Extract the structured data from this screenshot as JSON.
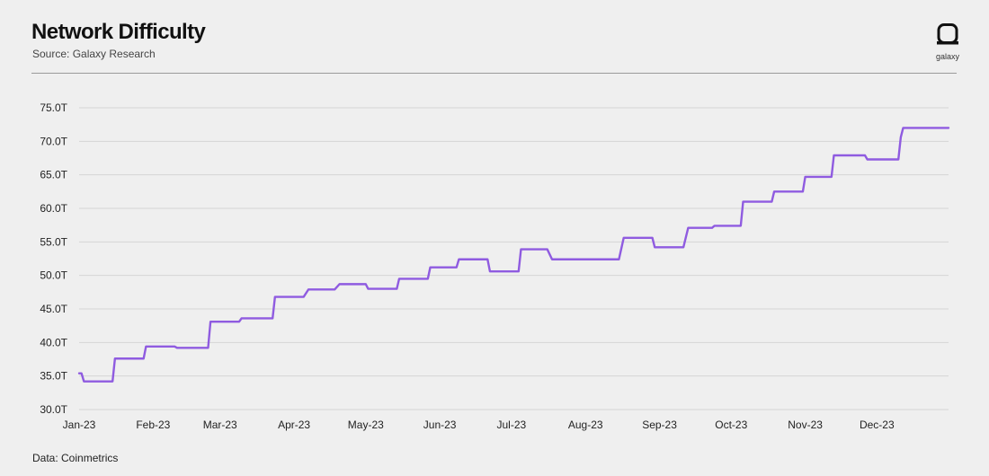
{
  "header": {
    "title": "Network Difficulty",
    "subtitle": "Source: Galaxy Research",
    "logo_text": "galaxy"
  },
  "footer": {
    "note": "Data: Coinmetrics"
  },
  "colors": {
    "line": "#8f5be0",
    "grid": "#d4d4d4",
    "background": "#efefef"
  },
  "chart_data": {
    "type": "line",
    "title": "Network Difficulty",
    "subtitle": "Source: Galaxy Research",
    "xlabel": "",
    "ylabel": "",
    "ylim": [
      30,
      75
    ],
    "y_unit": "T",
    "yticks": [
      "30.0T",
      "35.0T",
      "40.0T",
      "45.0T",
      "50.0T",
      "55.0T",
      "60.0T",
      "65.0T",
      "70.0T",
      "75.0T"
    ],
    "xlim": [
      "2023-01-01",
      "2023-12-31"
    ],
    "xticks": [
      {
        "date": "2023-01-01",
        "label": "Jan-23"
      },
      {
        "date": "2023-02-01",
        "label": "Feb-23"
      },
      {
        "date": "2023-03-01",
        "label": "Mar-23"
      },
      {
        "date": "2023-04-01",
        "label": "Apr-23"
      },
      {
        "date": "2023-05-01",
        "label": "May-23"
      },
      {
        "date": "2023-06-01",
        "label": "Jun-23"
      },
      {
        "date": "2023-07-01",
        "label": "Jul-23"
      },
      {
        "date": "2023-08-01",
        "label": "Aug-23"
      },
      {
        "date": "2023-09-01",
        "label": "Sep-23"
      },
      {
        "date": "2023-10-01",
        "label": "Oct-23"
      },
      {
        "date": "2023-11-01",
        "label": "Nov-23"
      },
      {
        "date": "2023-12-01",
        "label": "Dec-23"
      }
    ],
    "grid": "horizontal",
    "legend": "none",
    "series": [
      {
        "name": "",
        "points": [
          [
            "2023-01-01",
            35.4
          ],
          [
            "2023-01-02",
            35.4
          ],
          [
            "2023-01-03",
            34.2
          ],
          [
            "2023-01-15",
            34.2
          ],
          [
            "2023-01-16",
            37.6
          ],
          [
            "2023-01-28",
            37.6
          ],
          [
            "2023-01-29",
            39.4
          ],
          [
            "2023-02-10",
            39.4
          ],
          [
            "2023-02-11",
            39.2
          ],
          [
            "2023-02-24",
            39.2
          ],
          [
            "2023-02-25",
            43.1
          ],
          [
            "2023-03-09",
            43.1
          ],
          [
            "2023-03-10",
            43.6
          ],
          [
            "2023-03-23",
            43.6
          ],
          [
            "2023-03-24",
            46.8
          ],
          [
            "2023-04-05",
            46.8
          ],
          [
            "2023-04-07",
            47.9
          ],
          [
            "2023-04-18",
            47.9
          ],
          [
            "2023-04-20",
            48.7
          ],
          [
            "2023-05-01",
            48.7
          ],
          [
            "2023-05-02",
            48.0
          ],
          [
            "2023-05-14",
            48.0
          ],
          [
            "2023-05-15",
            49.5
          ],
          [
            "2023-05-27",
            49.5
          ],
          [
            "2023-05-28",
            51.2
          ],
          [
            "2023-06-08",
            51.2
          ],
          [
            "2023-06-09",
            52.4
          ],
          [
            "2023-06-21",
            52.4
          ],
          [
            "2023-06-22",
            50.6
          ],
          [
            "2023-07-04",
            50.6
          ],
          [
            "2023-07-05",
            53.9
          ],
          [
            "2023-07-16",
            53.9
          ],
          [
            "2023-07-18",
            52.4
          ],
          [
            "2023-08-15",
            52.4
          ],
          [
            "2023-08-17",
            55.6
          ],
          [
            "2023-08-29",
            55.6
          ],
          [
            "2023-08-30",
            54.2
          ],
          [
            "2023-09-11",
            54.2
          ],
          [
            "2023-09-13",
            57.1
          ],
          [
            "2023-09-23",
            57.1
          ],
          [
            "2023-09-24",
            57.4
          ],
          [
            "2023-10-05",
            57.4
          ],
          [
            "2023-10-06",
            61.0
          ],
          [
            "2023-10-18",
            61.0
          ],
          [
            "2023-10-19",
            62.5
          ],
          [
            "2023-10-31",
            62.5
          ],
          [
            "2023-11-01",
            64.7
          ],
          [
            "2023-11-12",
            64.7
          ],
          [
            "2023-11-13",
            67.9
          ],
          [
            "2023-11-26",
            67.9
          ],
          [
            "2023-11-27",
            67.3
          ],
          [
            "2023-12-10",
            67.3
          ],
          [
            "2023-12-11",
            70.6
          ],
          [
            "2023-12-12",
            72.0
          ],
          [
            "2023-12-31",
            72.0
          ]
        ]
      }
    ]
  }
}
